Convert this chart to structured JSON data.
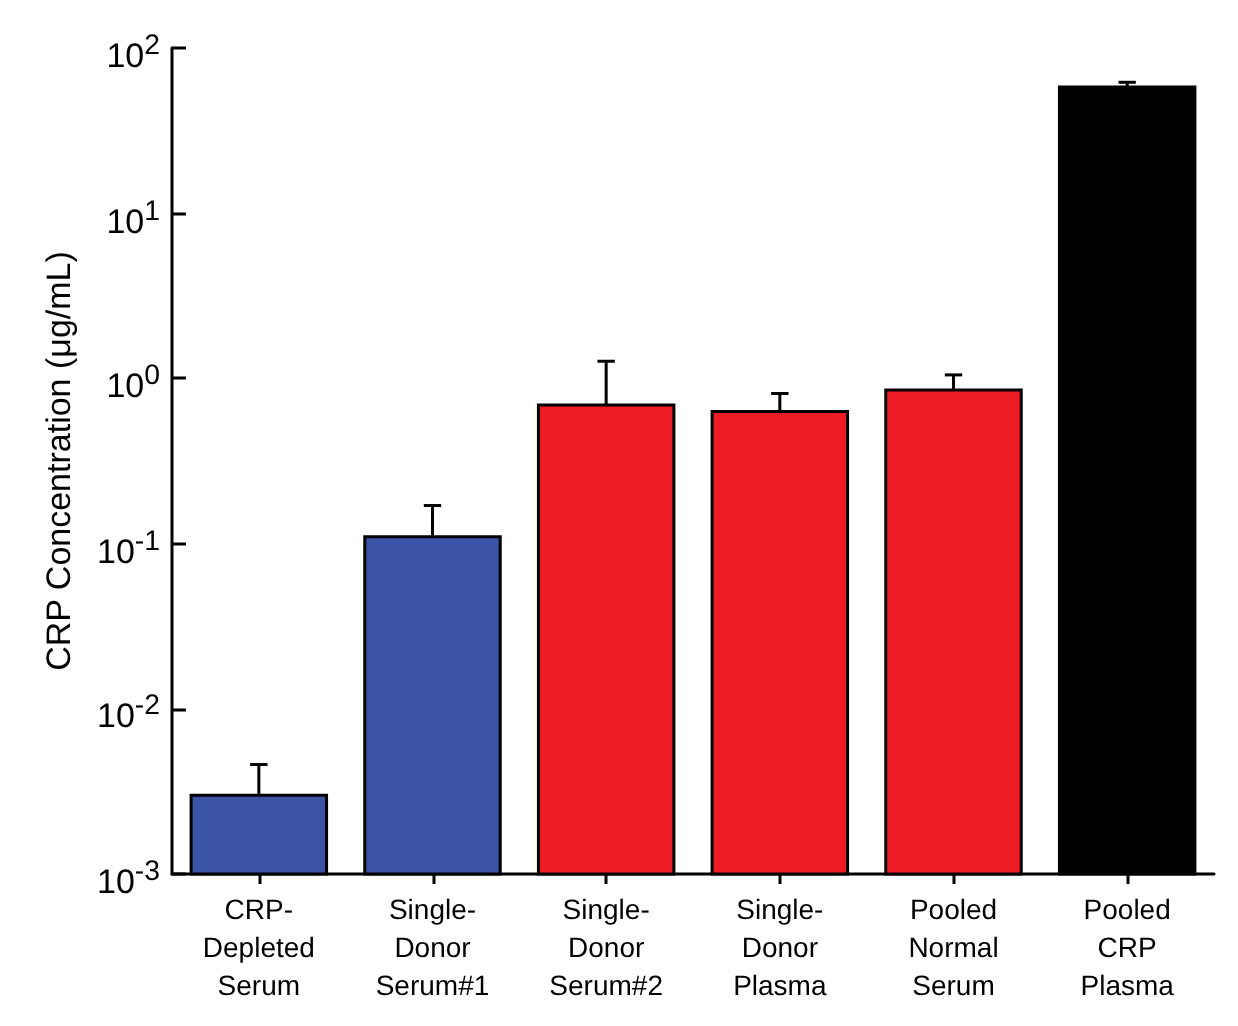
{
  "chart_data": {
    "type": "bar",
    "ylabel": "CRP Concentration (μg/mL)",
    "categories": [
      "CRP-\nDepleted\nSerum",
      "Single-\nDonor\nSerum#1",
      "Single-\nDonor\nSerum#2",
      "Single-\nDonor\nPlasma",
      "Pooled\nNormal\nSerum",
      "Pooled\nCRP\nPlasma"
    ],
    "values": [
      0.003,
      0.11,
      0.69,
      0.63,
      0.85,
      58
    ],
    "errors": [
      [
        0.003,
        0.0046
      ],
      [
        0.11,
        0.17
      ],
      [
        0.69,
        1.27
      ],
      [
        0.63,
        0.81
      ],
      [
        0.85,
        1.05
      ],
      [
        58,
        62
      ]
    ],
    "colors": [
      "#3a53a4",
      "#3a53a4",
      "#ed1c24",
      "#ed1c24",
      "#ed1c24",
      "#000000"
    ],
    "log": true,
    "ylim": [
      0.001,
      100
    ],
    "yticks": [
      {
        "value": 0.001,
        "label": "10$^{-3}$"
      },
      {
        "value": 0.01,
        "label": "10$^{-2}$"
      },
      {
        "value": 0.1,
        "label": "10$^{-1}$"
      },
      {
        "value": 1,
        "label": "10$^{0}$"
      },
      {
        "value": 10,
        "label": "10$^{1}$"
      },
      {
        "value": 100,
        "label": "10$^{2}$"
      }
    ]
  }
}
